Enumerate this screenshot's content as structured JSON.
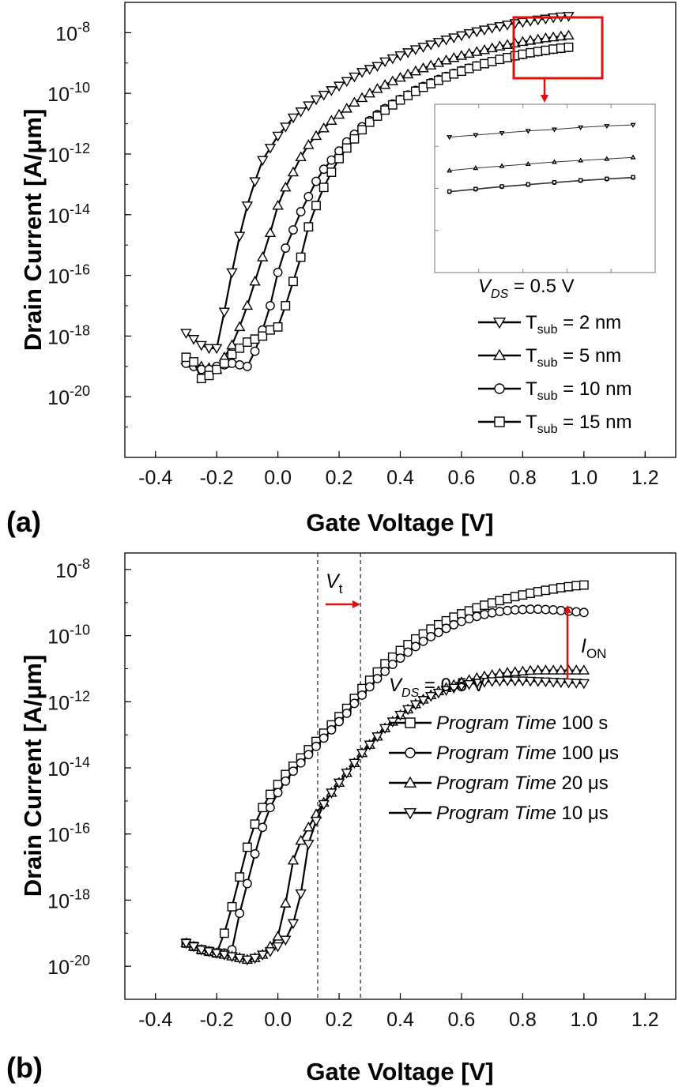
{
  "chart_data": [
    {
      "type": "line",
      "panel_label": "(a)",
      "xlabel": "Gate Voltage [V]",
      "ylabel": "Drain Current [A/μm]",
      "xlim": [
        -0.5,
        1.3
      ],
      "ylim_log10": [
        -22,
        -7
      ],
      "yscale": "log",
      "x_ticks": [
        "-0.4",
        "-0.2",
        "0.0",
        "0.2",
        "0.4",
        "0.6",
        "0.8",
        "1.0",
        "1.2"
      ],
      "y_ticks": [
        {
          "base": "10",
          "exp": "-8"
        },
        {
          "base": "10",
          "exp": "-10"
        },
        {
          "base": "10",
          "exp": "-12"
        },
        {
          "base": "10",
          "exp": "-14"
        },
        {
          "base": "10",
          "exp": "-16"
        },
        {
          "base": "10",
          "exp": "-18"
        },
        {
          "base": "10",
          "exp": "-20"
        }
      ],
      "legend_header": {
        "var": "V",
        "sub": "DS",
        "rest": " = 0.5 V"
      },
      "legend_position": "bottom-right",
      "inset": "zoomed view of the 0.77–0.95 V region (red box)",
      "x": [
        -0.3,
        -0.275,
        -0.25,
        -0.225,
        -0.2,
        -0.175,
        -0.15,
        -0.125,
        -0.1,
        -0.075,
        -0.05,
        -0.025,
        0,
        0.025,
        0.05,
        0.075,
        0.1,
        0.125,
        0.15,
        0.175,
        0.2,
        0.225,
        0.25,
        0.275,
        0.3,
        0.325,
        0.35,
        0.375,
        0.4,
        0.425,
        0.45,
        0.475,
        0.5,
        0.525,
        0.55,
        0.575,
        0.6,
        0.625,
        0.65,
        0.675,
        0.7,
        0.725,
        0.75,
        0.775,
        0.8,
        0.825,
        0.85,
        0.875,
        0.9,
        0.925,
        0.95
      ],
      "series": [
        {
          "name": "T_sub = 2 nm",
          "label": {
            "main": "T",
            "sub": "sub",
            "rest": " = 2 nm"
          },
          "marker": "triangle-down",
          "log10_y": [
            -17.9,
            -18.1,
            -18.3,
            -18.4,
            -18.4,
            -17.2,
            -15.9,
            -14.7,
            -13.7,
            -12.9,
            -12.2,
            -11.8,
            -11.4,
            -11.1,
            -10.8,
            -10.6,
            -10.4,
            -10.2,
            -10.05,
            -9.9,
            -9.75,
            -9.6,
            -9.45,
            -9.3,
            -9.2,
            -9.1,
            -8.95,
            -8.85,
            -8.75,
            -8.65,
            -8.55,
            -8.47,
            -8.39,
            -8.31,
            -8.23,
            -8.16,
            -8.09,
            -8.02,
            -7.96,
            -7.9,
            -7.84,
            -7.79,
            -7.74,
            -7.69,
            -7.65,
            -7.61,
            -7.57,
            -7.54,
            -7.5,
            -7.47,
            -7.45
          ]
        },
        {
          "name": "T_sub = 5 nm",
          "label": {
            "main": "T",
            "sub": "sub",
            "rest": " = 5 nm"
          },
          "marker": "triangle-up",
          "log10_y": [
            -18.8,
            -18.9,
            -19.0,
            -19.05,
            -19.1,
            -18.7,
            -18.3,
            -17.7,
            -17.0,
            -16.2,
            -15.4,
            -14.6,
            -13.7,
            -13.1,
            -12.6,
            -12.1,
            -11.7,
            -11.4,
            -11.15,
            -10.9,
            -10.7,
            -10.5,
            -10.3,
            -10.15,
            -10.0,
            -9.85,
            -9.72,
            -9.6,
            -9.48,
            -9.37,
            -9.27,
            -9.17,
            -9.08,
            -8.99,
            -8.91,
            -8.83,
            -8.76,
            -8.69,
            -8.63,
            -8.57,
            -8.51,
            -8.45,
            -8.4,
            -8.35,
            -8.3,
            -8.26,
            -8.22,
            -8.18,
            -8.15,
            -8.12,
            -8.09
          ]
        },
        {
          "name": "T_sub = 10 nm",
          "label": {
            "main": "T",
            "sub": "sub",
            "rest": " = 10 nm"
          },
          "marker": "circle",
          "log10_y": [
            -18.9,
            -19.0,
            -19.1,
            -19.1,
            -19.0,
            -18.95,
            -18.9,
            -18.95,
            -19.0,
            -18.5,
            -17.8,
            -17.0,
            -15.9,
            -15.1,
            -14.5,
            -13.9,
            -13.4,
            -12.9,
            -12.5,
            -12.2,
            -11.9,
            -11.6,
            -11.35,
            -11.1,
            -10.9,
            -10.7,
            -10.5,
            -10.35,
            -10.2,
            -10.05,
            -9.9,
            -9.77,
            -9.65,
            -9.54,
            -9.44,
            -9.34,
            -9.25,
            -9.17,
            -9.09,
            -9.02,
            -8.95,
            -8.88,
            -8.82,
            -8.77,
            -8.72,
            -8.67,
            -8.63,
            -8.59,
            -8.55,
            -8.52,
            -8.49
          ]
        },
        {
          "name": "T_sub = 15 nm",
          "label": {
            "main": "T",
            "sub": "sub",
            "rest": " = 15 nm"
          },
          "marker": "square",
          "log10_y": [
            -18.7,
            -18.85,
            -19.4,
            -19.3,
            -19.1,
            -18.9,
            -18.6,
            -18.4,
            -18.2,
            -18.1,
            -18.0,
            -17.8,
            -17.7,
            -17.0,
            -16.2,
            -15.4,
            -14.4,
            -13.7,
            -13.1,
            -12.6,
            -12.15,
            -11.8,
            -11.5,
            -11.2,
            -10.95,
            -10.75,
            -10.55,
            -10.38,
            -10.22,
            -10.07,
            -9.93,
            -9.8,
            -9.68,
            -9.57,
            -9.46,
            -9.36,
            -9.27,
            -9.18,
            -9.1,
            -9.02,
            -8.95,
            -8.88,
            -8.82,
            -8.76,
            -8.71,
            -8.66,
            -8.62,
            -8.58,
            -8.54,
            -8.51,
            -8.48
          ]
        }
      ]
    },
    {
      "type": "line",
      "panel_label": "(b)",
      "xlabel": "Gate Voltage [V]",
      "ylabel": "Drain Current [A/μm]",
      "xlim": [
        -0.5,
        1.3
      ],
      "ylim_log10": [
        -21,
        -7.5
      ],
      "yscale": "log",
      "x_ticks": [
        "-0.4",
        "-0.2",
        "0.0",
        "0.2",
        "0.4",
        "0.6",
        "0.8",
        "1.0",
        "1.2"
      ],
      "y_ticks": [
        {
          "base": "10",
          "exp": "-8"
        },
        {
          "base": "10",
          "exp": "-10"
        },
        {
          "base": "10",
          "exp": "-12"
        },
        {
          "base": "10",
          "exp": "-14"
        },
        {
          "base": "10",
          "exp": "-16"
        },
        {
          "base": "10",
          "exp": "-18"
        },
        {
          "base": "10",
          "exp": "-20"
        }
      ],
      "vlines_x": [
        0.13,
        0.27
      ],
      "annotations": {
        "vt": {
          "main": "V",
          "sub": "t"
        },
        "ion": {
          "main": "I",
          "sub": "ON"
        }
      },
      "legend_header": {
        "var": "V",
        "sub": "DS",
        "rest": " = 0.5 V"
      },
      "legend_position": "bottom-right",
      "x": [
        -0.3,
        -0.275,
        -0.25,
        -0.225,
        -0.2,
        -0.175,
        -0.15,
        -0.125,
        -0.1,
        -0.075,
        -0.05,
        -0.025,
        0,
        0.025,
        0.05,
        0.075,
        0.1,
        0.125,
        0.15,
        0.175,
        0.2,
        0.225,
        0.25,
        0.275,
        0.3,
        0.325,
        0.35,
        0.375,
        0.4,
        0.425,
        0.45,
        0.475,
        0.5,
        0.525,
        0.55,
        0.575,
        0.6,
        0.625,
        0.65,
        0.675,
        0.7,
        0.725,
        0.75,
        0.775,
        0.8,
        0.825,
        0.85,
        0.875,
        0.9,
        0.925,
        0.95,
        0.975,
        1.0
      ],
      "series": [
        {
          "name": "Program Time 100 s",
          "label": {
            "italic": "Program Time",
            "rest": " 100 s"
          },
          "marker": "square",
          "log10_y": [
            -19.3,
            -19.4,
            -19.5,
            -19.55,
            -19.6,
            -19.0,
            -18.2,
            -17.3,
            -16.4,
            -15.7,
            -15.2,
            -14.8,
            -14.5,
            -14.2,
            -13.95,
            -13.7,
            -13.45,
            -13.2,
            -12.95,
            -12.7,
            -12.45,
            -12.2,
            -11.9,
            -11.6,
            -11.35,
            -11.1,
            -10.85,
            -10.65,
            -10.45,
            -10.27,
            -10.1,
            -9.95,
            -9.8,
            -9.67,
            -9.55,
            -9.44,
            -9.34,
            -9.25,
            -9.16,
            -9.08,
            -9.01,
            -8.94,
            -8.88,
            -8.82,
            -8.77,
            -8.72,
            -8.67,
            -8.63,
            -8.59,
            -8.55,
            -8.52,
            -8.49,
            -8.47
          ]
        },
        {
          "name": "Program Time 100 μs",
          "label": {
            "italic": "Program Time",
            "rest": " 100 μs"
          },
          "marker": "circle",
          "log10_y": [
            -19.3,
            -19.4,
            -19.5,
            -19.55,
            -19.6,
            -19.6,
            -19.5,
            -18.4,
            -17.5,
            -16.6,
            -15.8,
            -15.2,
            -14.75,
            -14.4,
            -14.1,
            -13.85,
            -13.6,
            -13.35,
            -13.1,
            -12.85,
            -12.6,
            -12.35,
            -12.05,
            -11.8,
            -11.55,
            -11.3,
            -11.08,
            -10.87,
            -10.68,
            -10.5,
            -10.33,
            -10.17,
            -10.03,
            -9.9,
            -9.78,
            -9.67,
            -9.57,
            -9.49,
            -9.42,
            -9.36,
            -9.31,
            -9.27,
            -9.24,
            -9.22,
            -9.21,
            -9.2,
            -9.2,
            -9.21,
            -9.22,
            -9.24,
            -9.26,
            -9.28,
            -9.3
          ]
        },
        {
          "name": "Program Time 20 μs",
          "label": {
            "italic": "Program Time",
            "rest": " 20 μs"
          },
          "marker": "triangle-up",
          "log10_y": [
            -19.3,
            -19.4,
            -19.5,
            -19.55,
            -19.6,
            -19.65,
            -19.7,
            -19.75,
            -19.8,
            -19.75,
            -19.65,
            -19.4,
            -19.1,
            -18.1,
            -16.8,
            -16.2,
            -15.8,
            -15.4,
            -15.05,
            -14.75,
            -14.45,
            -14.15,
            -13.85,
            -13.55,
            -13.3,
            -13.05,
            -12.8,
            -12.6,
            -12.4,
            -12.23,
            -12.07,
            -11.93,
            -11.8,
            -11.68,
            -11.58,
            -11.49,
            -11.41,
            -11.34,
            -11.28,
            -11.23,
            -11.19,
            -11.15,
            -11.12,
            -11.1,
            -11.08,
            -11.06,
            -11.05,
            -11.05,
            -11.05,
            -11.05,
            -11.05,
            -11.05,
            -11.05
          ]
        },
        {
          "name": "Program Time 10 μs",
          "label": {
            "italic": "Program Time",
            "rest": " 10 μs"
          },
          "marker": "triangle-down",
          "log10_y": [
            -19.3,
            -19.4,
            -19.5,
            -19.55,
            -19.6,
            -19.65,
            -19.7,
            -19.75,
            -19.8,
            -19.75,
            -19.65,
            -19.55,
            -19.4,
            -19.2,
            -18.7,
            -17.8,
            -16.3,
            -15.6,
            -15.1,
            -14.75,
            -14.45,
            -14.15,
            -13.85,
            -13.55,
            -13.3,
            -13.05,
            -12.8,
            -12.6,
            -12.4,
            -12.23,
            -12.08,
            -11.95,
            -11.83,
            -11.73,
            -11.65,
            -11.58,
            -11.52,
            -11.47,
            -11.43,
            -11.4,
            -11.38,
            -11.37,
            -11.36,
            -11.36,
            -11.36,
            -11.37,
            -11.38,
            -11.39,
            -11.4,
            -11.41,
            -11.42,
            -11.43,
            -11.44
          ]
        }
      ]
    }
  ]
}
